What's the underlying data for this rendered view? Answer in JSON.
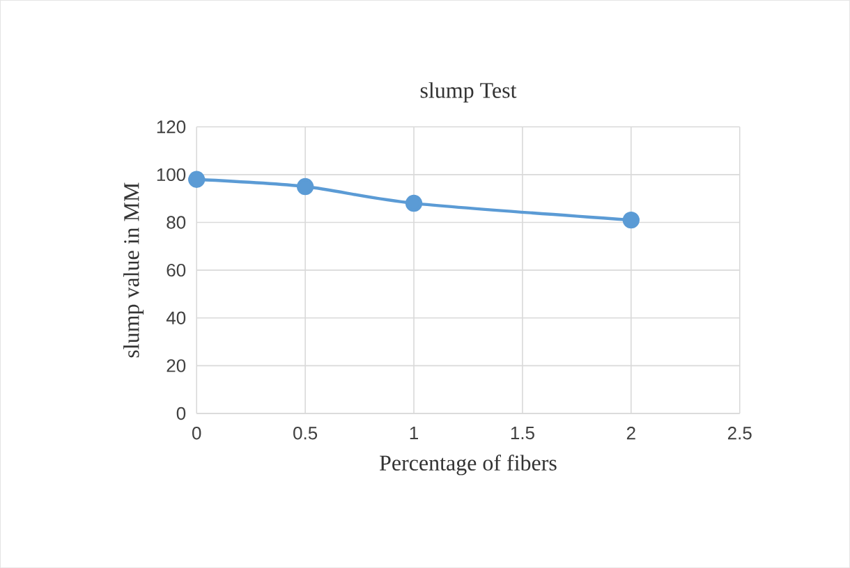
{
  "chart_data": {
    "type": "line",
    "title": "slump Test",
    "xlabel": "Percentage of fibers",
    "ylabel": "slump value in MM",
    "x": [
      0,
      0.5,
      1,
      2
    ],
    "series": [
      {
        "color": "#5b9bd5",
        "values": [
          98,
          95,
          88,
          81
        ]
      }
    ],
    "xlim": [
      0,
      2.5
    ],
    "xticks": [
      0,
      0.5,
      1,
      1.5,
      2,
      2.5
    ],
    "ylim": [
      0,
      120
    ],
    "yticks": [
      0,
      20,
      40,
      60,
      80,
      100,
      120
    ],
    "grid": true,
    "marker": "circle",
    "line_style": "solid"
  }
}
